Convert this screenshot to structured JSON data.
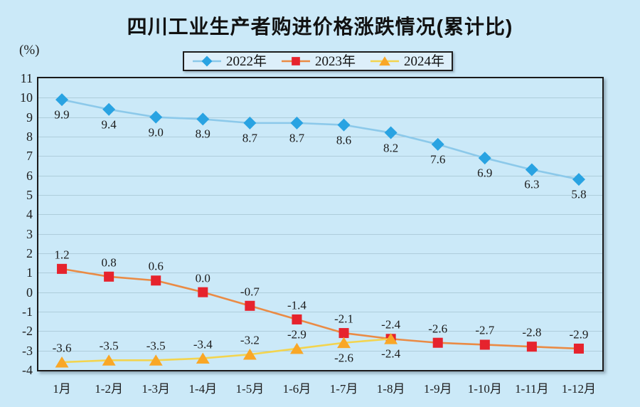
{
  "page": {
    "background": "#cbe9f8"
  },
  "chart_data": {
    "type": "line",
    "title": "四川工业生产者购进价格涨跌情况(累计比)",
    "y_unit": "(%)",
    "categories": [
      "1月",
      "1-2月",
      "1-3月",
      "1-4月",
      "1-5月",
      "1-6月",
      "1-7月",
      "1-8月",
      "1-9月",
      "1-10月",
      "1-11月",
      "1-12月"
    ],
    "y_axis": {
      "min": -4,
      "max": 11,
      "step": 1
    },
    "grid": true,
    "legend_position": "top-center",
    "data_labels_decimals": 1,
    "series": [
      {
        "name": "2022年",
        "marker": "diamond",
        "marker_color": "#29a3e2",
        "line_color": "#8cc9ea",
        "values": [
          9.9,
          9.4,
          9.0,
          8.9,
          8.7,
          8.7,
          8.6,
          8.2,
          7.6,
          6.9,
          6.3,
          5.8
        ],
        "label_positions": [
          "below",
          "below",
          "below",
          "below",
          "below",
          "below",
          "below",
          "below",
          "below",
          "below",
          "below",
          "below"
        ]
      },
      {
        "name": "2023年",
        "marker": "square",
        "marker_color": "#e6232d",
        "line_color": "#ea8b45",
        "values": [
          1.2,
          0.8,
          0.6,
          0.0,
          -0.7,
          -1.4,
          -2.1,
          -2.4,
          -2.6,
          -2.7,
          -2.8,
          -2.9
        ],
        "label_positions": [
          "above",
          "above",
          "above",
          "above",
          "above",
          "above",
          "above",
          "above",
          "above",
          "above",
          "above",
          "above"
        ]
      },
      {
        "name": "2024年",
        "marker": "triangle",
        "marker_color": "#f9a727",
        "line_color": "#f3d44e",
        "values": [
          -3.6,
          -3.5,
          -3.5,
          -3.4,
          -3.2,
          -2.9,
          -2.6,
          -2.4
        ],
        "label_positions": [
          "above",
          "above",
          "above",
          "above",
          "above",
          "above",
          "below",
          "below"
        ]
      }
    ]
  }
}
